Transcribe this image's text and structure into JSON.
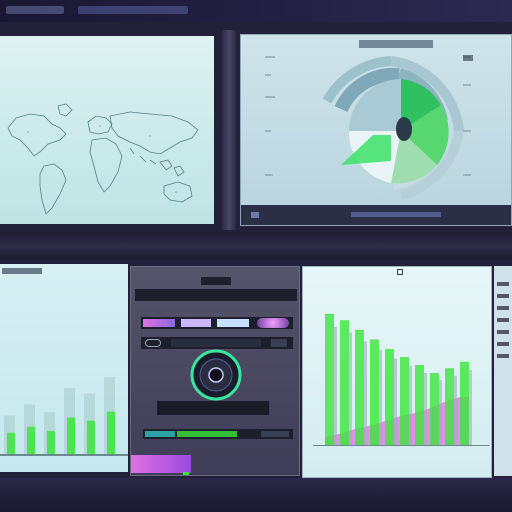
{
  "top": {
    "tab1": "",
    "tab2": ""
  },
  "colors": {
    "green": "#39e639",
    "magenta": "#e070e0",
    "teal": "#2aa3a3",
    "dark": "#2a2f45"
  },
  "world_map": {
    "icon": "world-map"
  },
  "dashboard": {
    "title": "",
    "footer_labels": [
      "",
      "",
      "",
      ""
    ],
    "radial_icon": "radial-sunburst-chart"
  },
  "left_bars": {
    "title": "",
    "values": [
      0.35,
      0.45,
      0.38,
      0.6,
      0.55,
      0.7
    ]
  },
  "center": {
    "header": "",
    "sub": "",
    "toggle_label": "",
    "search_label": "",
    "readout": "",
    "progress_label": "",
    "knob_icon": "knob-icon"
  },
  "right_chart": {
    "title": "",
    "green_values": [
      0.82,
      0.78,
      0.72,
      0.66,
      0.6,
      0.55,
      0.5,
      0.45,
      0.48,
      0.52
    ],
    "magenta_values": [
      0.05,
      0.07,
      0.1,
      0.12,
      0.15,
      0.18,
      0.2,
      0.23,
      0.27,
      0.3
    ]
  },
  "side_list": {
    "items": [
      "",
      "",
      "",
      "",
      "",
      "",
      ""
    ]
  }
}
